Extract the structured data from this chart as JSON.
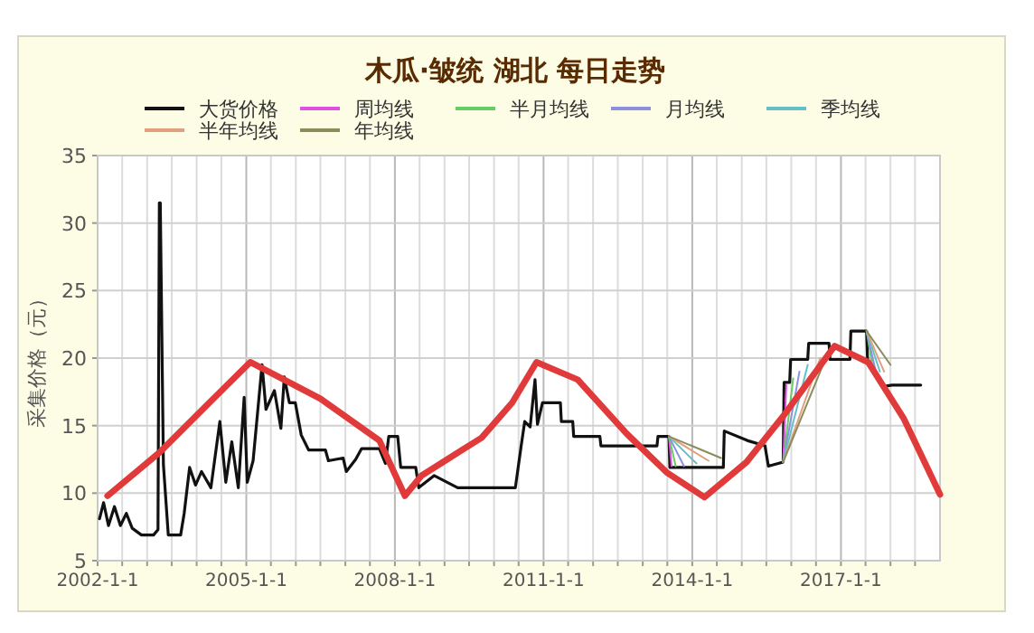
{
  "chart_data": {
    "type": "line",
    "title": "木瓜·皱统 湖北 每日走势",
    "ylabel": "采集价格（元）",
    "legend": "top",
    "grid": true,
    "xlim": [
      "2002-01-01",
      "2019-01-01"
    ],
    "xticks": [
      {
        "value": "2002-01-01",
        "label": "2002-1-1"
      },
      {
        "value": "2002-07-01",
        "label": null
      },
      {
        "value": "2003-01-01",
        "label": null
      },
      {
        "value": "2003-07-01",
        "label": null
      },
      {
        "value": "2004-01-01",
        "label": null
      },
      {
        "value": "2004-07-01",
        "label": null
      },
      {
        "value": "2005-01-01",
        "label": "2005-1-1"
      },
      {
        "value": "2005-07-01",
        "label": null
      },
      {
        "value": "2006-01-01",
        "label": null
      },
      {
        "value": "2006-07-01",
        "label": null
      },
      {
        "value": "2007-01-01",
        "label": null
      },
      {
        "value": "2007-07-01",
        "label": null
      },
      {
        "value": "2008-01-01",
        "label": "2008-1-1"
      },
      {
        "value": "2008-07-01",
        "label": null
      },
      {
        "value": "2009-01-01",
        "label": null
      },
      {
        "value": "2009-07-01",
        "label": null
      },
      {
        "value": "2010-01-01",
        "label": null
      },
      {
        "value": "2010-07-01",
        "label": null
      },
      {
        "value": "2011-01-01",
        "label": "2011-1-1"
      },
      {
        "value": "2011-07-01",
        "label": null
      },
      {
        "value": "2012-01-01",
        "label": null
      },
      {
        "value": "2012-07-01",
        "label": null
      },
      {
        "value": "2013-01-01",
        "label": null
      },
      {
        "value": "2013-07-01",
        "label": null
      },
      {
        "value": "2014-01-01",
        "label": "2014-1-1"
      },
      {
        "value": "2014-07-01",
        "label": null
      },
      {
        "value": "2015-01-01",
        "label": null
      },
      {
        "value": "2015-07-01",
        "label": null
      },
      {
        "value": "2016-01-01",
        "label": null
      },
      {
        "value": "2016-07-01",
        "label": null
      },
      {
        "value": "2017-01-01",
        "label": "2017-1-1"
      },
      {
        "value": "2017-07-01",
        "label": null
      },
      {
        "value": "2018-01-01",
        "label": null
      },
      {
        "value": "2018-07-01",
        "label": null
      }
    ],
    "ylim": [
      5,
      35
    ],
    "yticks": [
      5,
      10,
      15,
      20,
      25,
      30,
      35
    ],
    "series": [
      {
        "name": "大货价格",
        "color": "#111111",
        "x": [
          "2002-01-15",
          "2002-02-14",
          "2002-03-22",
          "2002-05-05",
          "2002-06-18",
          "2002-08-01",
          "2002-09-13",
          "2002-11-20",
          "2003-02-17",
          "2003-03-22",
          "2003-04-01",
          "2003-04-08",
          "2003-04-15",
          "2003-05-01",
          "2003-06-06",
          "2003-09-05",
          "2003-10-01",
          "2003-11-10",
          "2003-12-24",
          "2004-02-06",
          "2004-04-15",
          "2004-06-20",
          "2004-08-03",
          "2004-09-16",
          "2004-11-03",
          "2004-12-16",
          "2005-01-08",
          "2005-02-20",
          "2005-04-27",
          "2005-05-26",
          "2005-07-27",
          "2005-09-13",
          "2005-10-08",
          "2005-11-14",
          "2005-12-28",
          "2006-02-10",
          "2006-04-05",
          "2006-08-07",
          "2006-08-29",
          "2006-12-16",
          "2007-01-08",
          "2007-03-18",
          "2007-05-01",
          "2007-09-09",
          "2007-10-23",
          "2007-11-17",
          "2008-01-22",
          "2008-02-13",
          "2008-06-03",
          "2008-06-25",
          "2008-10-16",
          "2009-04-08",
          "2010-06-07",
          "2010-07-20",
          "2010-08-15",
          "2010-09-24",
          "2010-10-30",
          "2010-11-17",
          "2010-12-24",
          "2011-05-05",
          "2011-05-12",
          "2011-08-04",
          "2011-08-11",
          "2012-02-20",
          "2012-02-28",
          "2013-04-16",
          "2013-04-23",
          "2013-07-13",
          "2013-07-20",
          "2014-08-18",
          "2014-08-25",
          "2015-02-10",
          "2015-06-21",
          "2015-07-16",
          "2015-11-02",
          "2015-11-09",
          "2015-12-20",
          "2015-12-27",
          "2016-05-01",
          "2016-05-08",
          "2016-10-05",
          "2016-10-12",
          "2017-03-08",
          "2017-03-15",
          "2017-07-09",
          "2017-07-16",
          "2017-09-24",
          "2017-11-10",
          "2018-01-12",
          "2018-08-12"
        ],
        "values": [
          8.1,
          9.3,
          7.6,
          9.0,
          7.6,
          8.5,
          7.4,
          6.9,
          6.9,
          7.3,
          31.5,
          31.5,
          25.5,
          12.1,
          6.9,
          6.9,
          8.5,
          11.9,
          10.6,
          11.6,
          10.4,
          15.3,
          10.8,
          13.8,
          10.4,
          17.1,
          10.8,
          12.4,
          19.5,
          16.2,
          17.6,
          14.8,
          18.6,
          16.7,
          16.7,
          14.3,
          13.2,
          13.2,
          12.4,
          12.6,
          11.6,
          12.5,
          13.3,
          13.3,
          12.2,
          14.2,
          14.2,
          11.9,
          11.9,
          10.4,
          11.3,
          10.4,
          10.4,
          13.5,
          15.3,
          14.9,
          18.4,
          15.1,
          16.7,
          16.7,
          15.3,
          15.3,
          14.2,
          14.2,
          13.5,
          13.5,
          14.2,
          14.2,
          11.9,
          11.9,
          14.6,
          13.9,
          13.5,
          12.0,
          12.3,
          18.2,
          18.2,
          19.9,
          19.9,
          21.1,
          21.1,
          19.9,
          19.9,
          22.0,
          22.0,
          19.9,
          null,
          17.9,
          18.0,
          18.0
        ]
      },
      {
        "name": "周均线",
        "color": "#e050e0",
        "x": [
          "2013-07-13",
          "2013-08-01",
          "2014-01-01",
          "2015-11-02",
          "2015-11-25"
        ],
        "values": [
          14.2,
          12.0,
          null,
          12.3,
          18.0
        ]
      },
      {
        "name": "半月均线",
        "color": "#66cc66",
        "x": [
          "2013-07-13",
          "2013-09-01",
          "2014-01-01",
          "2015-11-02",
          "2016-01-15",
          "2016-06-01",
          "2017-07-09",
          "2017-08-20"
        ],
        "values": [
          14.2,
          12.0,
          null,
          12.3,
          18.5,
          null,
          22.0,
          19.5
        ]
      },
      {
        "name": "月均线",
        "color": "#8f8fe0",
        "x": [
          "2013-07-13",
          "2013-11-01",
          "2014-01-01",
          "2015-11-02",
          "2016-03-01",
          "2016-06-01",
          "2017-07-09",
          "2017-09-15"
        ],
        "values": [
          14.2,
          12.0,
          null,
          12.3,
          19.0,
          null,
          22.0,
          19.0
        ]
      },
      {
        "name": "季均线",
        "color": "#66c0c8",
        "x": [
          "2013-07-13",
          "2014-02-01",
          "2014-06-01",
          "2015-11-02",
          "2016-05-01",
          "2016-06-01",
          "2017-07-09",
          "2017-10-15"
        ],
        "values": [
          14.2,
          12.2,
          null,
          12.3,
          19.5,
          null,
          22.0,
          19.0
        ]
      },
      {
        "name": "半年均线",
        "color": "#e0a080",
        "x": [
          "2013-07-13",
          "2014-05-01",
          "2014-06-01",
          "2015-11-02",
          "2016-08-01",
          "2016-09-01",
          "2017-07-09",
          "2017-11-15"
        ],
        "values": [
          14.2,
          12.4,
          null,
          12.3,
          20.0,
          null,
          22.0,
          19.0
        ]
      },
      {
        "name": "年均线",
        "color": "#8c8c5a",
        "x": [
          "2013-07-13",
          "2014-08-01",
          "2014-09-01",
          "2015-11-02",
          "2016-10-01",
          "2016-11-01",
          "2017-07-09",
          "2018-01-01"
        ],
        "values": [
          14.2,
          12.6,
          null,
          12.3,
          20.5,
          null,
          22.0,
          19.5
        ]
      },
      {
        "color": "#e03a3a",
        "x": [
          "2002-03-15",
          "2003-04-01",
          "2004-03-15",
          "2005-01-30",
          "2006-07-01",
          "2007-09-09",
          "2008-03-15",
          "2008-07-15",
          "2009-10-01",
          "2010-05-15",
          "2010-11-10",
          "2011-09-10",
          "2012-09-05",
          "2013-07-01",
          "2014-04-01",
          "2015-02-05",
          "2015-11-02",
          "2016-11-15",
          "2017-07-20",
          "2018-04-10",
          "2019-01-01"
        ],
        "values": [
          9.8,
          13.0,
          16.5,
          19.7,
          17.0,
          13.9,
          9.8,
          11.3,
          14.1,
          16.7,
          19.7,
          18.4,
          14.4,
          11.5,
          9.7,
          12.3,
          15.7,
          20.9,
          19.7,
          15.5,
          9.9
        ]
      }
    ]
  }
}
